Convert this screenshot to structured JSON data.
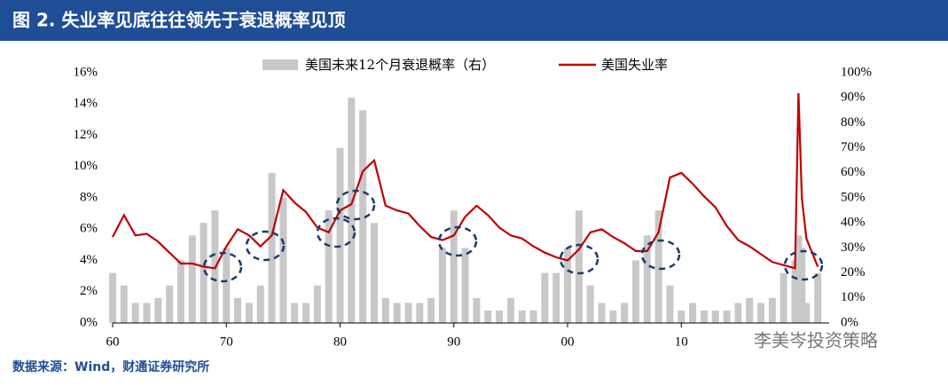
{
  "chart_data": {
    "type": "bar-line",
    "title": "图 2. 失业率见底往往领先于衰退概率见顶",
    "source": "数据来源：Wind，财通证券研究所",
    "watermark": "李美岑投资策略",
    "x": [
      1960,
      1961,
      1962,
      1963,
      1964,
      1965,
      1966,
      1967,
      1968,
      1969,
      1970,
      1971,
      1972,
      1973,
      1974,
      1975,
      1976,
      1977,
      1978,
      1979,
      1980,
      1981,
      1982,
      1983,
      1984,
      1985,
      1986,
      1987,
      1988,
      1989,
      1990,
      1991,
      1992,
      1993,
      1994,
      1995,
      1996,
      1997,
      1998,
      1999,
      2000,
      2001,
      2002,
      2003,
      2004,
      2005,
      2006,
      2007,
      2008,
      2009,
      2010,
      2011,
      2012,
      2013,
      2014,
      2015,
      2016,
      2017,
      2018,
      2019,
      2020.0,
      2020.3,
      2020.6,
      2021,
      2022
    ],
    "series": [
      {
        "name": "美国未来12个月衰退概率（右）",
        "color": "#c8c8c8",
        "axis": "y2",
        "kind": "bar",
        "values": [
          20,
          15,
          8,
          8,
          10,
          15,
          25,
          35,
          40,
          45,
          30,
          10,
          8,
          15,
          60,
          50,
          8,
          8,
          15,
          45,
          70,
          90,
          85,
          40,
          10,
          8,
          8,
          8,
          10,
          30,
          45,
          30,
          10,
          5,
          5,
          10,
          5,
          5,
          20,
          20,
          30,
          45,
          15,
          8,
          5,
          8,
          25,
          35,
          45,
          15,
          5,
          8,
          5,
          5,
          5,
          8,
          10,
          8,
          10,
          20,
          25,
          35,
          30,
          8,
          20
        ]
      },
      {
        "name": "美国失业率",
        "color": "#c00000",
        "axis": "y",
        "kind": "line",
        "values": [
          5.5,
          6.9,
          5.6,
          5.7,
          5.2,
          4.5,
          3.8,
          3.8,
          3.6,
          3.5,
          4.9,
          6.0,
          5.6,
          4.9,
          5.6,
          8.5,
          7.7,
          7.1,
          6.1,
          5.8,
          7.2,
          7.6,
          9.7,
          10.4,
          7.5,
          7.2,
          7.0,
          6.2,
          5.5,
          5.3,
          5.6,
          6.8,
          7.5,
          6.9,
          6.1,
          5.6,
          5.4,
          4.9,
          4.5,
          4.2,
          4.0,
          4.7,
          5.8,
          6.0,
          5.5,
          5.1,
          4.6,
          4.6,
          5.8,
          9.3,
          9.6,
          8.9,
          8.1,
          7.4,
          6.2,
          5.3,
          4.9,
          4.4,
          3.9,
          3.7,
          3.5,
          14.7,
          8.0,
          5.4,
          3.6
        ]
      }
    ],
    "xlim": [
      1960,
      2023
    ],
    "xticks": [
      {
        "value": 1960,
        "label": "60"
      },
      {
        "value": 1970,
        "label": "70"
      },
      {
        "value": 1980,
        "label": "80"
      },
      {
        "value": 1990,
        "label": "90"
      },
      {
        "value": 2000,
        "label": "00"
      },
      {
        "value": 2010,
        "label": "10"
      }
    ],
    "ylim": [
      0,
      16
    ],
    "yticks": [
      {
        "value": 0,
        "label": "0%"
      },
      {
        "value": 2,
        "label": "2%"
      },
      {
        "value": 4,
        "label": "4%"
      },
      {
        "value": 6,
        "label": "6%"
      },
      {
        "value": 8,
        "label": "8%"
      },
      {
        "value": 10,
        "label": "10%"
      },
      {
        "value": 12,
        "label": "12%"
      },
      {
        "value": 14,
        "label": "14%"
      },
      {
        "value": 16,
        "label": "16%"
      }
    ],
    "y2lim": [
      0,
      100
    ],
    "y2ticks": [
      {
        "value": 0,
        "label": "0%"
      },
      {
        "value": 10,
        "label": "10%"
      },
      {
        "value": 20,
        "label": "20%"
      },
      {
        "value": 30,
        "label": "30%"
      },
      {
        "value": 40,
        "label": "40%"
      },
      {
        "value": 50,
        "label": "50%"
      },
      {
        "value": 60,
        "label": "60%"
      },
      {
        "value": 70,
        "label": "70%"
      },
      {
        "value": 80,
        "label": "80%"
      },
      {
        "value": 90,
        "label": "90%"
      },
      {
        "value": 100,
        "label": "100%"
      }
    ]
  }
}
